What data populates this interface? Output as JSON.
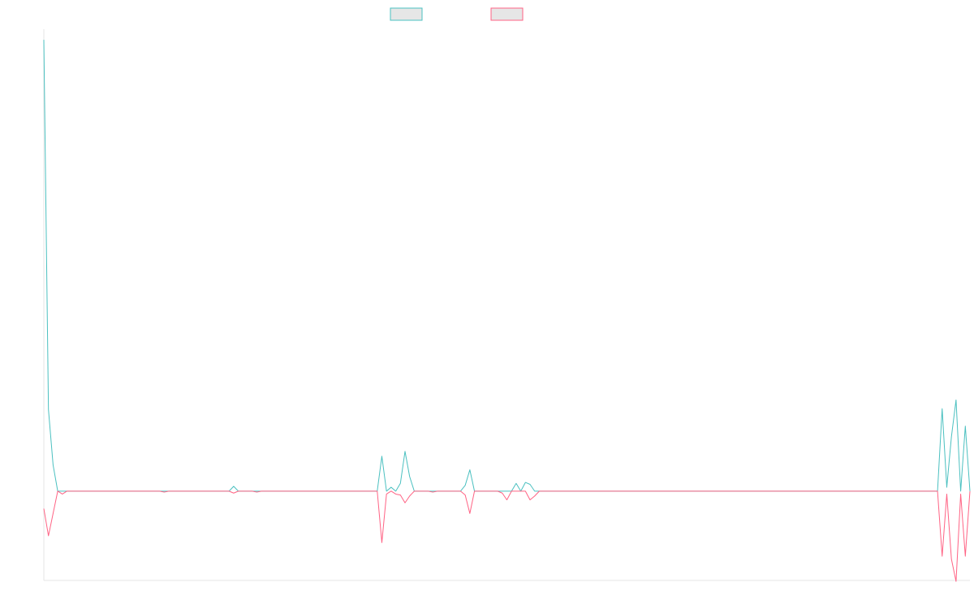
{
  "chart_data": {
    "type": "line",
    "title": "",
    "xlabel": "",
    "ylabel": "",
    "ylim": [
      -9.2,
      47.6
    ],
    "grid": false,
    "legend": "top-center",
    "x_count": 200,
    "series": [
      {
        "name": "",
        "color": "#4bc0c0",
        "fill": "#e6e6e6",
        "points": [
          [
            0,
            46.5
          ],
          [
            1,
            8.4
          ],
          [
            2,
            2.7
          ],
          [
            3,
            0
          ],
          [
            4,
            0
          ],
          [
            5,
            0
          ],
          [
            40,
            0
          ],
          [
            41,
            0.5
          ],
          [
            42,
            0
          ],
          [
            72,
            0
          ],
          [
            73,
            3.6
          ],
          [
            74,
            0
          ],
          [
            75,
            0.4
          ],
          [
            76,
            0
          ],
          [
            77,
            0.8
          ],
          [
            78,
            4.1
          ],
          [
            79,
            1.5
          ],
          [
            80,
            0
          ],
          [
            90,
            0
          ],
          [
            91,
            0.6
          ],
          [
            92,
            2.2
          ],
          [
            93,
            0
          ],
          [
            101,
            0
          ],
          [
            102,
            0.8
          ],
          [
            103,
            0
          ],
          [
            104,
            0.9
          ],
          [
            105,
            0.7
          ],
          [
            106,
            0
          ],
          [
            193,
            0
          ],
          [
            194,
            8.5
          ],
          [
            195,
            0.4
          ],
          [
            196,
            5.6
          ],
          [
            197,
            9.4
          ],
          [
            198,
            0
          ],
          [
            199,
            6.7
          ],
          [
            200,
            0
          ]
        ]
      },
      {
        "name": "",
        "color": "#ff6384",
        "fill": "#e6e6e6",
        "points": [
          [
            0,
            -1.8
          ],
          [
            1,
            -4.6
          ],
          [
            2,
            -2.3
          ],
          [
            3,
            0
          ],
          [
            4,
            -0.3
          ],
          [
            5,
            0
          ],
          [
            25,
            0
          ],
          [
            26,
            -0.1
          ],
          [
            27,
            0
          ],
          [
            40,
            0
          ],
          [
            41,
            -0.2
          ],
          [
            42,
            0
          ],
          [
            45,
            0
          ],
          [
            46,
            -0.1
          ],
          [
            47,
            0
          ],
          [
            72,
            0
          ],
          [
            73,
            -5.3
          ],
          [
            74,
            -0.3
          ],
          [
            75,
            0
          ],
          [
            76,
            -0.3
          ],
          [
            77,
            -0.4
          ],
          [
            78,
            -1.2
          ],
          [
            79,
            -0.5
          ],
          [
            80,
            0
          ],
          [
            83,
            0
          ],
          [
            84,
            -0.1
          ],
          [
            85,
            0
          ],
          [
            90,
            0
          ],
          [
            91,
            -0.4
          ],
          [
            92,
            -2.3
          ],
          [
            93,
            0
          ],
          [
            98,
            0
          ],
          [
            99,
            -0.2
          ],
          [
            100,
            -0.9
          ],
          [
            101,
            0
          ],
          [
            104,
            0
          ],
          [
            105,
            -0.9
          ],
          [
            106,
            -0.5
          ],
          [
            107,
            0
          ],
          [
            193,
            0
          ],
          [
            194,
            -6.7
          ],
          [
            195,
            -0.3
          ],
          [
            196,
            -7.0
          ],
          [
            197,
            -9.3
          ],
          [
            198,
            -0.3
          ],
          [
            199,
            -6.7
          ],
          [
            200,
            0
          ]
        ]
      }
    ]
  }
}
